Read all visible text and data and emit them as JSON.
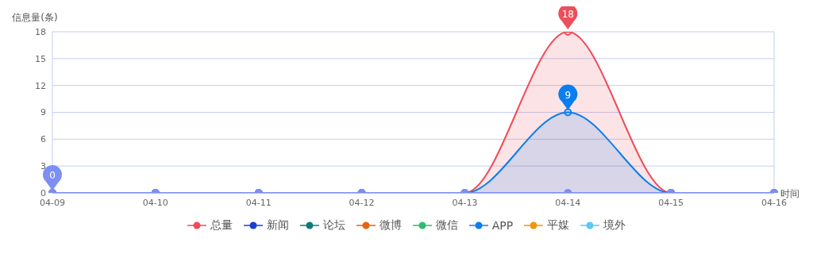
{
  "chart_data": {
    "type": "line",
    "ylabel": "信息量(条)",
    "xlabel": "时间",
    "categories": [
      "04-09",
      "04-10",
      "04-11",
      "04-12",
      "04-13",
      "04-14",
      "04-15",
      "04-16"
    ],
    "series": [
      {
        "name": "总量",
        "type": "area",
        "color": "#ee4d5a",
        "values": [
          0,
          0,
          0,
          0,
          0,
          18,
          0,
          0
        ]
      },
      {
        "name": "新闻",
        "color": "#1a3fd0",
        "values": [
          null,
          null,
          null,
          null,
          null,
          null,
          null,
          null
        ]
      },
      {
        "name": "论坛",
        "color": "#0e7c7b",
        "values": [
          null,
          null,
          null,
          null,
          null,
          null,
          null,
          null
        ]
      },
      {
        "name": "微博",
        "color": "#e8620a",
        "values": [
          null,
          null,
          null,
          null,
          null,
          null,
          null,
          null
        ]
      },
      {
        "name": "微信",
        "color": "#2ebd6e",
        "values": [
          null,
          null,
          null,
          null,
          null,
          null,
          null,
          null
        ]
      },
      {
        "name": "APP",
        "type": "area",
        "color": "#0a7ef0",
        "values": [
          0,
          0,
          0,
          0,
          0,
          9,
          0,
          0
        ]
      },
      {
        "name": "平媒",
        "color": "#f0960a",
        "values": [
          null,
          null,
          null,
          null,
          null,
          null,
          null,
          null
        ]
      },
      {
        "name": "境外",
        "color": "#5ac8fa",
        "values": [
          null,
          null,
          null,
          null,
          null,
          null,
          null,
          null
        ]
      },
      {
        "color": "#b07fe8",
        "values": [
          null,
          null,
          null,
          null,
          null,
          null,
          null,
          null
        ]
      },
      {
        "color": "#7b8ff5",
        "values": [
          0,
          0,
          0,
          0,
          0,
          0,
          0,
          0
        ]
      }
    ],
    "ylim": [
      0,
      18
    ],
    "yticks": [
      0,
      3,
      6,
      9,
      12,
      15,
      18
    ],
    "grid": "y",
    "legend": "bottom",
    "marker": "circle",
    "line_style": "solid",
    "annotations": [
      {
        "text": "18",
        "x": "04-14",
        "y": 18
      },
      {
        "text": "9",
        "x": "04-14",
        "y": 9
      },
      {
        "text": "0",
        "x": "04-09",
        "y": 0
      }
    ]
  }
}
